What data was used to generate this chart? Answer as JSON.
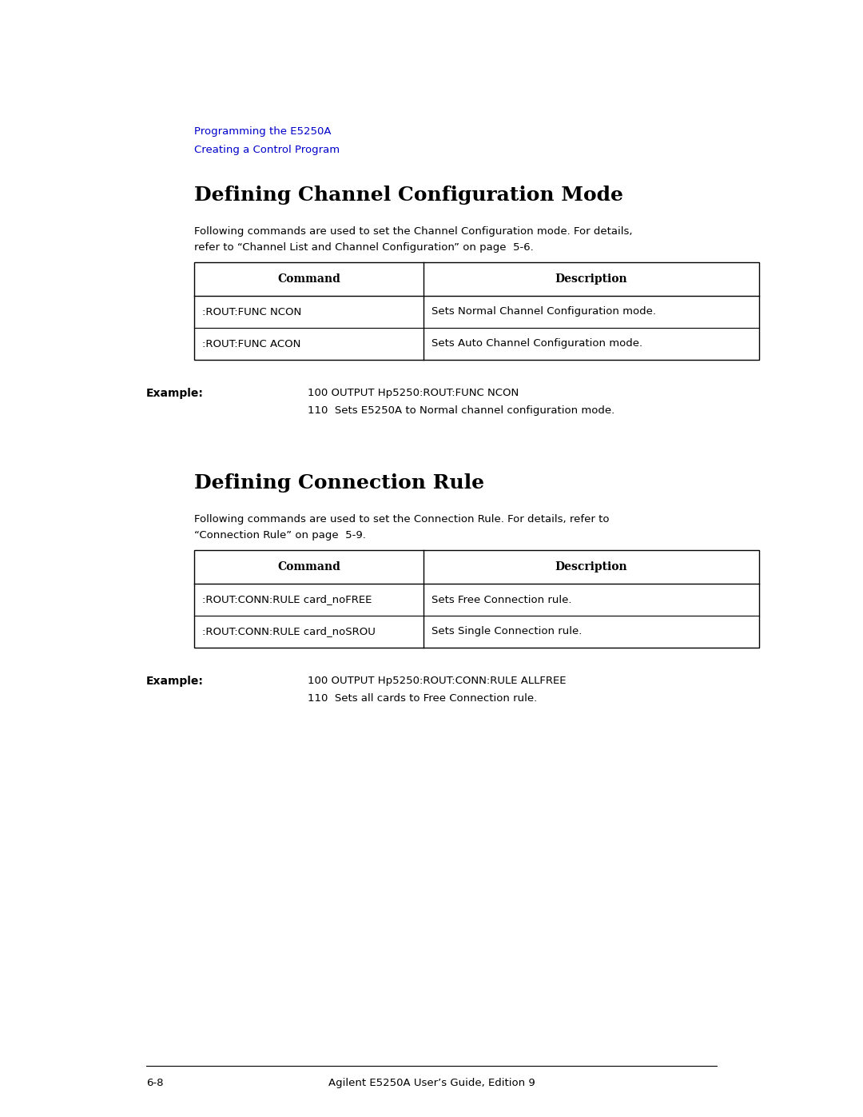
{
  "bg_color": "#ffffff",
  "breadcrumb1": "Programming the E5250A",
  "breadcrumb2": "Creating a Control Program",
  "breadcrumb_color": "#0000cc",
  "section1_title": "Defining Channel Configuration Mode",
  "section1_body1": "Following commands are used to set the Channel Configuration mode. For details,",
  "section1_body2": "refer to “Channel List and Channel Configuration” on page  5-6.",
  "table1_headers": [
    "Command",
    "Description"
  ],
  "table1_rows": [
    [
      ":ROUT:FUNC NCON",
      "Sets Normal Channel Configuration mode."
    ],
    [
      ":ROUT:FUNC ACON",
      "Sets Auto Channel Configuration mode."
    ]
  ],
  "example1_label": "Example:",
  "example1_line1": "100 OUTPUT Hp5250:ROUT:FUNC NCON",
  "example1_line2": "110  Sets E5250A to Normal channel configuration mode.",
  "section2_title": "Defining Connection Rule",
  "section2_body1": "Following commands are used to set the Connection Rule. For details, refer to",
  "section2_body2": "“Connection Rule” on page  5-9.",
  "table2_headers": [
    "Command",
    "Description"
  ],
  "table2_rows": [
    [
      ":ROUT:CONN:RULE card_noFREE",
      "Sets Free Connection rule."
    ],
    [
      ":ROUT:CONN:RULE card_noSROU",
      "Sets Single Connection rule."
    ]
  ],
  "example2_label": "Example:",
  "example2_line1": "100 OUTPUT Hp5250:ROUT:CONN:RULE ALLFREE",
  "example2_line2": "110  Sets all cards to Free Connection rule.",
  "footer_left": "6-8",
  "footer_center": "Agilent E5250A User’s Guide, Edition 9"
}
